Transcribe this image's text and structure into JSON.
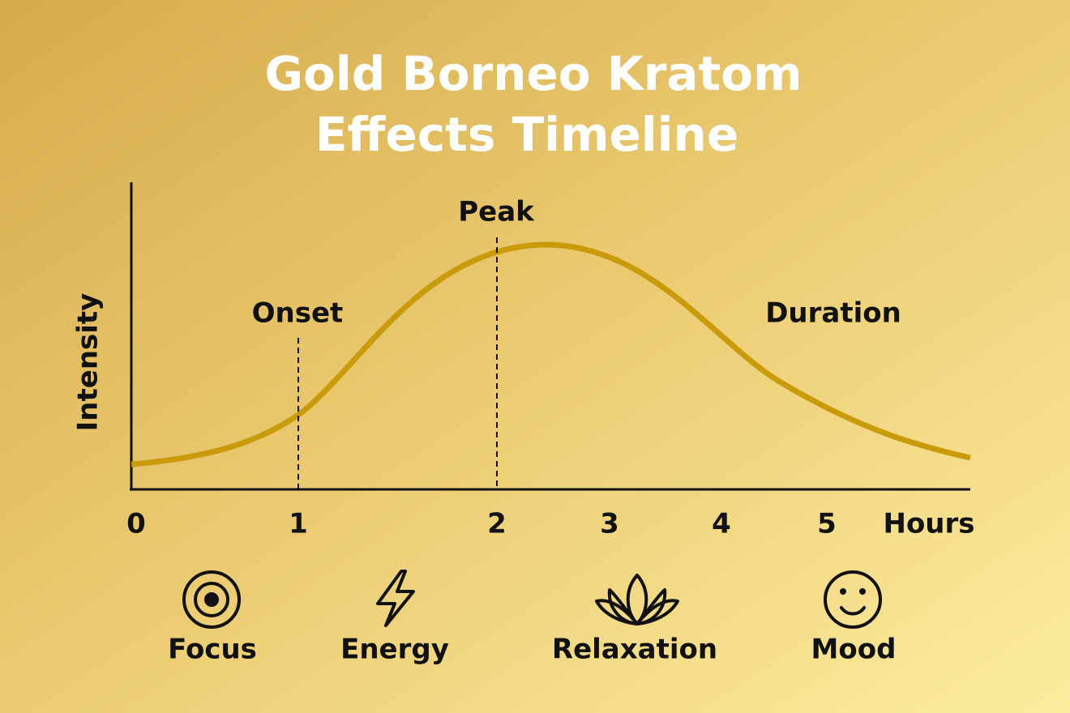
{
  "title": {
    "line1": "Gold Borneo Kratom",
    "line2": "Effects Timeline"
  },
  "y_axis": {
    "label": "Intensity"
  },
  "x_axis": {
    "ticks": [
      0,
      1,
      2,
      3,
      4,
      5
    ],
    "unit": "Hours"
  },
  "annotations": {
    "onset": "Onset",
    "peak": "Peak",
    "duration": "Duration"
  },
  "effects": [
    "Focus",
    "Energy",
    "Relaxation",
    "Mood"
  ]
}
